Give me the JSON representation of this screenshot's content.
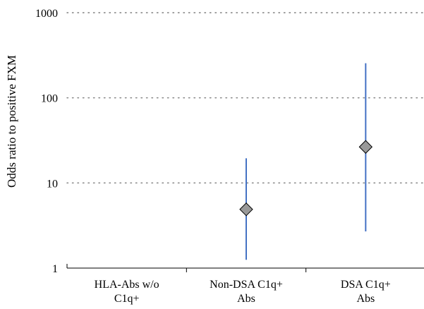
{
  "chart_data": {
    "type": "scatter",
    "title": "",
    "ylabel": "Odds ratio to positive FXM",
    "xlabel": "",
    "yscale": "log",
    "ylim": [
      1,
      1000
    ],
    "grid": "horizontal dotted",
    "yticks": [
      {
        "value": 1,
        "label": "1"
      },
      {
        "value": 10,
        "label": "10"
      },
      {
        "value": 100,
        "label": "100"
      },
      {
        "value": 1000,
        "label": "1000"
      }
    ],
    "categories": [
      [
        "HLA-Abs w/o",
        "C1q+"
      ],
      [
        "Non-DSA C1q+",
        "Abs"
      ],
      [
        "DSA C1q+",
        "Abs"
      ]
    ],
    "points": [
      null,
      {
        "value": 4.9,
        "lower": 1.25,
        "upper": 19.5
      },
      {
        "value": 26.5,
        "lower": 2.7,
        "upper": 255
      }
    ],
    "colors": {
      "marker_fill": "#999999",
      "marker_stroke": "#000000",
      "error_bar": "#4472c4",
      "grid": "#7f7f7f",
      "axis": "#000000"
    }
  }
}
